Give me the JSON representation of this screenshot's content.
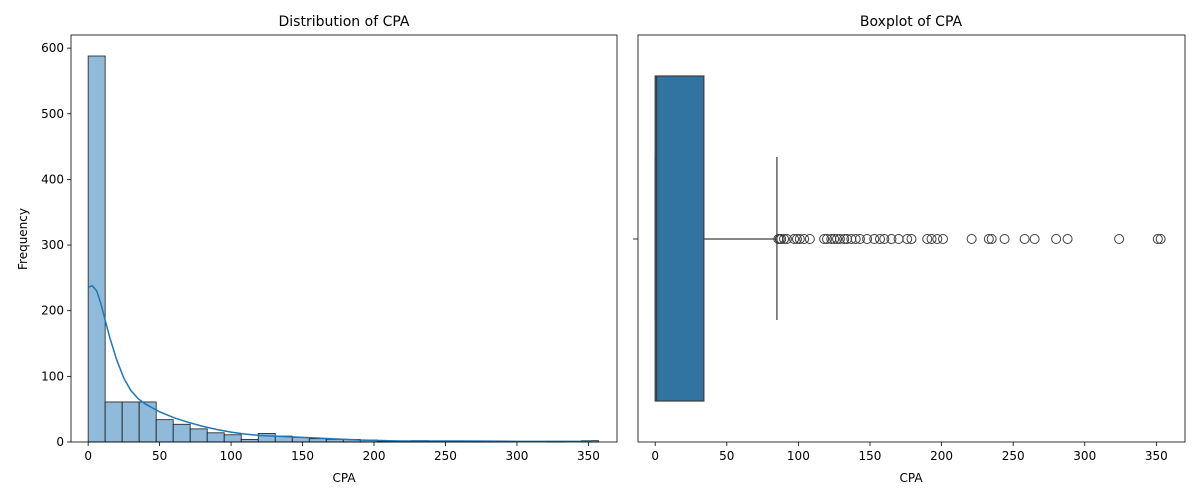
{
  "chart_data": [
    {
      "type": "bar",
      "subtype": "histogram-with-kde",
      "title": "Distribution of CPA",
      "xlabel": "CPA",
      "ylabel": "Frequency",
      "xlim": [
        -12,
        370
      ],
      "ylim": [
        0,
        620
      ],
      "xticks": [
        0,
        50,
        100,
        150,
        200,
        250,
        300,
        350
      ],
      "yticks": [
        0,
        100,
        200,
        300,
        400,
        500,
        600
      ],
      "bin_width": 11.9,
      "bins": [
        {
          "x0": 0.0,
          "x1": 11.9,
          "count": 588
        },
        {
          "x0": 11.9,
          "x1": 23.8,
          "count": 61
        },
        {
          "x0": 23.8,
          "x1": 35.7,
          "count": 61
        },
        {
          "x0": 35.7,
          "x1": 47.6,
          "count": 61
        },
        {
          "x0": 47.6,
          "x1": 59.5,
          "count": 34
        },
        {
          "x0": 59.5,
          "x1": 71.4,
          "count": 27
        },
        {
          "x0": 71.4,
          "x1": 83.3,
          "count": 20
        },
        {
          "x0": 83.3,
          "x1": 95.2,
          "count": 14
        },
        {
          "x0": 95.2,
          "x1": 107.1,
          "count": 11
        },
        {
          "x0": 107.1,
          "x1": 119.0,
          "count": 4
        },
        {
          "x0": 119.0,
          "x1": 130.9,
          "count": 13
        },
        {
          "x0": 130.9,
          "x1": 142.8,
          "count": 9
        },
        {
          "x0": 142.8,
          "x1": 154.7,
          "count": 7
        },
        {
          "x0": 154.7,
          "x1": 166.6,
          "count": 5
        },
        {
          "x0": 166.6,
          "x1": 178.5,
          "count": 4
        },
        {
          "x0": 178.5,
          "x1": 190.4,
          "count": 4
        },
        {
          "x0": 190.4,
          "x1": 202.3,
          "count": 3
        },
        {
          "x0": 202.3,
          "x1": 214.2,
          "count": 1
        },
        {
          "x0": 214.2,
          "x1": 226.1,
          "count": 1
        },
        {
          "x0": 226.1,
          "x1": 238.0,
          "count": 2
        },
        {
          "x0": 238.0,
          "x1": 249.9,
          "count": 1
        },
        {
          "x0": 249.9,
          "x1": 261.8,
          "count": 1
        },
        {
          "x0": 261.8,
          "x1": 273.7,
          "count": 1
        },
        {
          "x0": 273.7,
          "x1": 285.6,
          "count": 1
        },
        {
          "x0": 285.6,
          "x1": 297.5,
          "count": 1
        },
        {
          "x0": 297.5,
          "x1": 309.4,
          "count": 0
        },
        {
          "x0": 309.4,
          "x1": 321.3,
          "count": 0
        },
        {
          "x0": 321.3,
          "x1": 333.2,
          "count": 1
        },
        {
          "x0": 333.2,
          "x1": 345.1,
          "count": 0
        },
        {
          "x0": 345.1,
          "x1": 357.0,
          "count": 2
        }
      ],
      "kde": {
        "x": [
          0,
          3,
          6,
          9,
          12,
          15,
          20,
          25,
          30,
          35,
          40,
          45,
          50,
          60,
          70,
          80,
          90,
          100,
          110,
          120,
          130,
          140,
          150,
          160,
          170,
          180,
          190,
          200,
          210,
          220,
          240,
          260,
          280,
          300,
          320,
          340,
          352
        ],
        "y": [
          236,
          238,
          230,
          210,
          185,
          160,
          125,
          97,
          78,
          66,
          58,
          52,
          46,
          37,
          30,
          24,
          19,
          15,
          12,
          10,
          9,
          8,
          7,
          6,
          5,
          4,
          3,
          2.5,
          2,
          1.6,
          1.6,
          1.6,
          1.3,
          1,
          0.9,
          1,
          1
        ]
      },
      "colors": {
        "bar_fill": "#8fbada",
        "bar_edge": "#1a1a1a",
        "kde_line": "#1f77b4"
      },
      "grid": false
    },
    {
      "type": "boxplot",
      "title": "Boxplot of CPA",
      "xlabel": "CPA",
      "xlim": [
        -12,
        370
      ],
      "xticks": [
        0,
        50,
        100,
        150,
        200,
        250,
        300,
        350
      ],
      "box": {
        "whisker_low": 0,
        "q1": 0,
        "median": 1,
        "q3": 34,
        "whisker_high": 85
      },
      "outliers": [
        86,
        87,
        88,
        90,
        92,
        97,
        99,
        101,
        104,
        108,
        118,
        120,
        123,
        125,
        127,
        129,
        132,
        134,
        137,
        140,
        143,
        148,
        153,
        157,
        160,
        165,
        170,
        176,
        179,
        190,
        193,
        197,
        201,
        221,
        233,
        235,
        244,
        258,
        265,
        280,
        288,
        324,
        351,
        353
      ],
      "colors": {
        "box_fill": "#3274a1",
        "line": "#3d3d3d"
      },
      "grid": false
    }
  ]
}
